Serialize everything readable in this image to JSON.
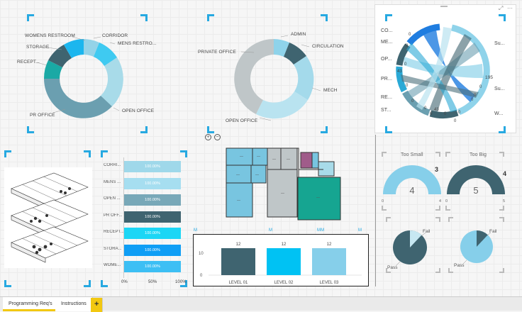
{
  "donut1": {
    "labels": [
      "WOMENS RESTROOM",
      "CORRIDOR",
      "MENS RESTRO...",
      "STORAGE",
      "RECEPT...",
      "OPEN OFFICE",
      "PR OFFICE"
    ]
  },
  "donut2": {
    "labels": [
      "ADMIN",
      "CIRCULATION",
      "PRIVATE OFFICE",
      "MECH",
      "OPEN OFFICE"
    ]
  },
  "chord": {
    "left_labels": [
      "CO...",
      "ME...",
      "OP...",
      "PR...",
      "RE...",
      "ST..."
    ],
    "right_labels": [
      "Su...",
      "Su...",
      "W..."
    ],
    "value_labels": [
      "0",
      "0",
      "0",
      "43",
      "0",
      "0",
      "0",
      "0",
      "43",
      "0",
      "0",
      "0",
      "195",
      "0",
      "0",
      "0"
    ]
  },
  "barlist": {
    "items": [
      {
        "label": "CORRI...",
        "value": "100.00%",
        "color": "#9fd8ea"
      },
      {
        "label": "MENS ...",
        "value": "100.00%",
        "color": "#a6def0"
      },
      {
        "label": "OPEN ...",
        "value": "100.00%",
        "color": "#78a8b8"
      },
      {
        "label": "PR OFF...",
        "value": "100.00%",
        "color": "#3f6470"
      },
      {
        "label": "RECEPT...",
        "value": "100.00%",
        "color": "#1cd6f5"
      },
      {
        "label": "STORA...",
        "value": "100.00%",
        "color": "#0f9ef5"
      },
      {
        "label": "WOME...",
        "value": "100.00%",
        "color": "#3dbff4"
      }
    ],
    "axis": [
      "0%",
      "50%",
      "100%"
    ]
  },
  "floorplan": {
    "zoom_in": "+",
    "zoom_out": "−",
    "room_labels": [
      "—",
      "—",
      "—",
      "—",
      "—",
      "—",
      "—",
      "—",
      "—"
    ]
  },
  "column_chart": {
    "chart_data": {
      "type": "bar",
      "categories": [
        "LEVEL 01",
        "LEVEL 02",
        "LEVEL 03"
      ],
      "values": [
        12,
        12,
        12
      ],
      "ylim": [
        0,
        12
      ],
      "yticks": [
        "10",
        "0"
      ],
      "colors": [
        "#3f6470",
        "#00c2f3",
        "#86cfea"
      ]
    },
    "header_marks": [
      "M",
      "M",
      "MM",
      "M",
      "M"
    ]
  },
  "gauges": [
    {
      "title": "Too Small",
      "value": "4",
      "target": "3",
      "min": "0",
      "max": "4",
      "fraction": 1.0,
      "color": "#86cfea"
    },
    {
      "title": "Too Big",
      "value": "5",
      "target": "4",
      "min": "0",
      "max": "5",
      "fraction": 1.0,
      "color": "#3f6470"
    }
  ],
  "pies": [
    {
      "fail_label": "Fail",
      "pass_label": "Pass",
      "fail_fraction": 0.12,
      "fill": "#3f6470",
      "slice": "#c7e8f2"
    },
    {
      "fail_label": "Fail",
      "pass_label": "Pass",
      "fail_fraction": 0.12,
      "fill": "#86cfea",
      "slice": "#3f6470"
    }
  ],
  "tabs": [
    "Programming Req's",
    "Instructions",
    "+"
  ]
}
